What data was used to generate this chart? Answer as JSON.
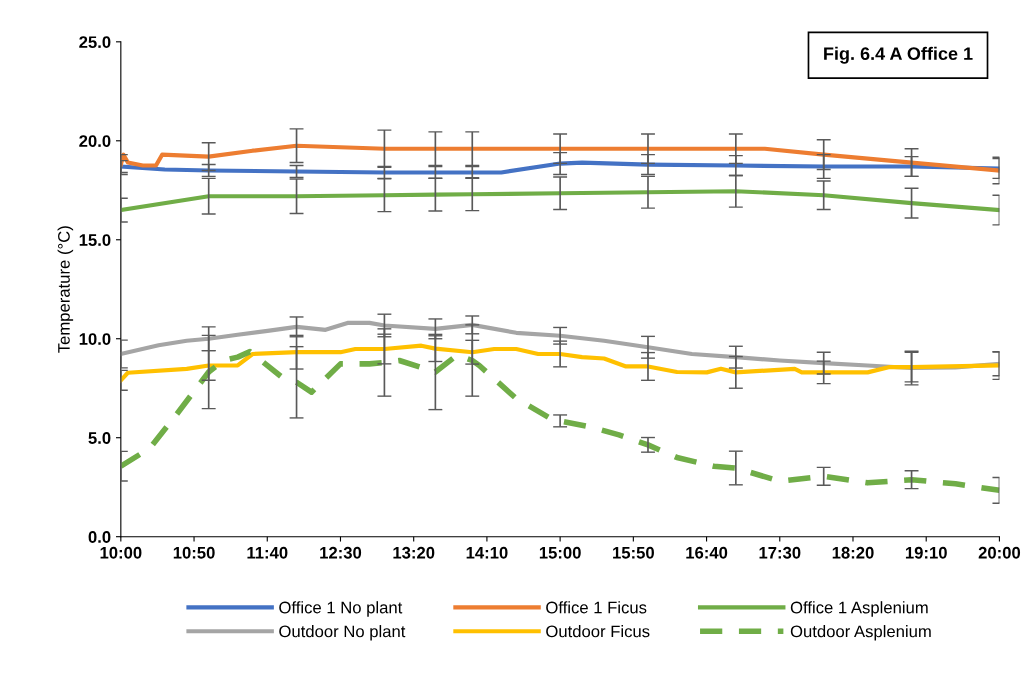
{
  "chart_data": {
    "type": "line",
    "ylabel": "Temperature (°C)",
    "annotations": [
      "Fig. 6.4 A Office 1"
    ],
    "xlim": [
      10,
      20
    ],
    "xticks": [
      {
        "value": 10,
        "label": "10:00"
      },
      {
        "value": 10.8333,
        "label": "10:50"
      },
      {
        "value": 11.6667,
        "label": "11:40"
      },
      {
        "value": 12.5,
        "label": "12:30"
      },
      {
        "value": 13.3333,
        "label": "13:20"
      },
      {
        "value": 14.1667,
        "label": "14:10"
      },
      {
        "value": 15,
        "label": "15:00"
      },
      {
        "value": 15.8333,
        "label": "15:50"
      },
      {
        "value": 16.6667,
        "label": "16:40"
      },
      {
        "value": 17.5,
        "label": "17:30"
      },
      {
        "value": 18.3333,
        "label": "18:20"
      },
      {
        "value": 19.1667,
        "label": "19:10"
      },
      {
        "value": 20,
        "label": "20:00"
      }
    ],
    "ylim": [
      0,
      25
    ],
    "yticks": [
      {
        "value": 0,
        "label": "0.0"
      },
      {
        "value": 5,
        "label": "5.0"
      },
      {
        "value": 10,
        "label": "10.0"
      },
      {
        "value": 15,
        "label": "15.0"
      },
      {
        "value": 20,
        "label": "20.0"
      },
      {
        "value": 25,
        "label": "25.0"
      }
    ],
    "grid": false,
    "legend": "bottom",
    "marker": "none",
    "series": [
      {
        "name": "Office 1 No plant",
        "color": "#4472c4",
        "line_style": "solid",
        "x": [
          10,
          10.5,
          11,
          12,
          13,
          13.58,
          14,
          14.33,
          15,
          15.25,
          16,
          17,
          18,
          19,
          20
        ],
        "values": [
          18.7,
          18.55,
          18.5,
          18.45,
          18.4,
          18.4,
          18.4,
          18.4,
          18.85,
          18.9,
          18.8,
          18.75,
          18.7,
          18.7,
          18.6
        ],
        "errors": [
          0.3,
          null,
          0.3,
          0.3,
          0.3,
          0.3,
          0.3,
          null,
          0.55,
          null,
          0.5,
          0.5,
          0.6,
          0.5,
          0.5
        ]
      },
      {
        "name": "Office 1 Ficus",
        "color": "#ed7d31",
        "line_style": "solid",
        "x": [
          10,
          10.03,
          10.08,
          10.25,
          10.4,
          10.47,
          11,
          11.5,
          12,
          13,
          13.58,
          14,
          15,
          16,
          17,
          17.33,
          18,
          19,
          20
        ],
        "values": [
          18.8,
          19.3,
          18.9,
          18.75,
          18.75,
          19.3,
          19.2,
          19.5,
          19.75,
          19.6,
          19.6,
          19.6,
          19.6,
          19.6,
          19.6,
          19.6,
          19.3,
          18.9,
          18.5
        ],
        "errors": [
          0.5,
          null,
          null,
          null,
          null,
          null,
          0.7,
          null,
          0.85,
          0.94,
          0.85,
          0.85,
          0.74,
          0.74,
          0.74,
          null,
          0.75,
          0.7,
          0.67
        ]
      },
      {
        "name": "Office 1 Asplenium",
        "color": "#70ad47",
        "line_style": "solid",
        "x": [
          10,
          11,
          12,
          13,
          13.58,
          14,
          15,
          16,
          17,
          18,
          19,
          20
        ],
        "values": [
          16.5,
          17.2,
          17.2,
          17.25,
          17.28,
          17.3,
          17.35,
          17.4,
          17.45,
          17.25,
          16.85,
          16.5
        ],
        "errors": [
          0.6,
          0.9,
          0.87,
          0.83,
          0.83,
          0.83,
          0.82,
          0.8,
          0.8,
          0.72,
          0.75,
          0.75
        ]
      },
      {
        "name": "Outdoor No plant",
        "color": "#a5a5a5",
        "line_style": "solid",
        "x": [
          10,
          10.43,
          10.75,
          11,
          11.33,
          11.67,
          12,
          12.33,
          12.58,
          12.83,
          13,
          13.58,
          14,
          14.5,
          15,
          15.5,
          16,
          16.5,
          17,
          17.5,
          18,
          18.5,
          19,
          19.5,
          20
        ],
        "values": [
          9.23,
          9.67,
          9.9,
          10.0,
          10.2,
          10.4,
          10.6,
          10.45,
          10.8,
          10.8,
          10.67,
          10.5,
          10.7,
          10.3,
          10.15,
          9.9,
          9.57,
          9.23,
          9.07,
          8.9,
          8.77,
          8.65,
          8.52,
          8.55,
          8.73
        ],
        "errors": [
          0.7,
          null,
          null,
          0.6,
          null,
          null,
          0.5,
          null,
          null,
          null,
          0.57,
          0.5,
          0.45,
          null,
          0.42,
          null,
          0.55,
          null,
          0.55,
          null,
          0.55,
          null,
          0.85,
          null,
          0.6
        ]
      },
      {
        "name": "Outdoor Ficus",
        "color": "#ffc000",
        "line_style": "solid",
        "x": [
          10,
          10.08,
          10.75,
          11,
          11.33,
          11.5,
          12,
          12.5,
          12.67,
          13,
          13.42,
          13.58,
          14,
          14.25,
          14.5,
          14.75,
          15,
          15.25,
          15.5,
          15.75,
          16,
          16.33,
          16.67,
          16.83,
          17,
          17.67,
          17.75,
          18,
          18.5,
          18.75,
          19,
          20
        ],
        "values": [
          7.9,
          8.28,
          8.48,
          8.65,
          8.65,
          9.23,
          9.32,
          9.32,
          9.48,
          9.48,
          9.65,
          9.5,
          9.32,
          9.48,
          9.48,
          9.23,
          9.23,
          9.07,
          9.0,
          8.6,
          8.6,
          8.32,
          8.3,
          8.48,
          8.3,
          8.48,
          8.3,
          8.3,
          8.3,
          8.57,
          8.57,
          8.65
        ],
        "errors": [
          0.5,
          null,
          null,
          0.75,
          null,
          null,
          0.85,
          null,
          null,
          0.75,
          null,
          0.65,
          0.6,
          null,
          null,
          null,
          0.65,
          null,
          null,
          null,
          0.7,
          null,
          null,
          null,
          0.8,
          null,
          null,
          0.57,
          null,
          null,
          0.75,
          0.7
        ]
      },
      {
        "name": "Outdoor Asplenium",
        "color": "#70ad47",
        "line_style": "dashed",
        "x": [
          10,
          10.33,
          10.63,
          11,
          11.17,
          11.33,
          11.47,
          11.83,
          12,
          12.17,
          12.5,
          12.83,
          13,
          13.17,
          13.58,
          13.83,
          14,
          14.08,
          14.5,
          14.92,
          15,
          15.33,
          15.67,
          16,
          16.33,
          16.75,
          17,
          17.5,
          18,
          18.5,
          19,
          19.5,
          20
        ],
        "values": [
          3.56,
          4.47,
          6.15,
          8.32,
          8.9,
          9.07,
          9.35,
          8.07,
          7.8,
          7.3,
          8.73,
          8.73,
          8.8,
          8.9,
          8.32,
          9.18,
          8.9,
          8.65,
          6.98,
          5.9,
          5.85,
          5.56,
          5.14,
          4.64,
          4.0,
          3.56,
          3.47,
          2.8,
          3.05,
          2.72,
          2.88,
          2.67,
          2.34
        ],
        "errors": [
          0.75,
          null,
          null,
          1.85,
          null,
          null,
          null,
          null,
          1.8,
          null,
          null,
          null,
          1.7,
          null,
          1.9,
          null,
          1.8,
          null,
          null,
          null,
          0.3,
          null,
          null,
          0.37,
          null,
          null,
          0.85,
          null,
          0.45,
          null,
          0.45,
          null,
          0.65
        ]
      }
    ]
  }
}
